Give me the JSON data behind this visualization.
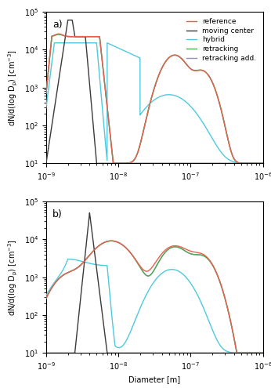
{
  "title_a": "a)",
  "title_b": "b)",
  "xlabel": "Diameter [m]",
  "xlim": [
    1e-09,
    1e-06
  ],
  "ylim": [
    10,
    100000.0
  ],
  "legend_labels": [
    "reference",
    "moving center",
    "hybrid",
    "retracking",
    "retracking add."
  ],
  "colors": {
    "reference": "#e8604c",
    "moving_center": "#3a3a3a",
    "hybrid": "#4ec9e0",
    "retracking": "#4caf50",
    "retracking_add": "#9090c0"
  }
}
